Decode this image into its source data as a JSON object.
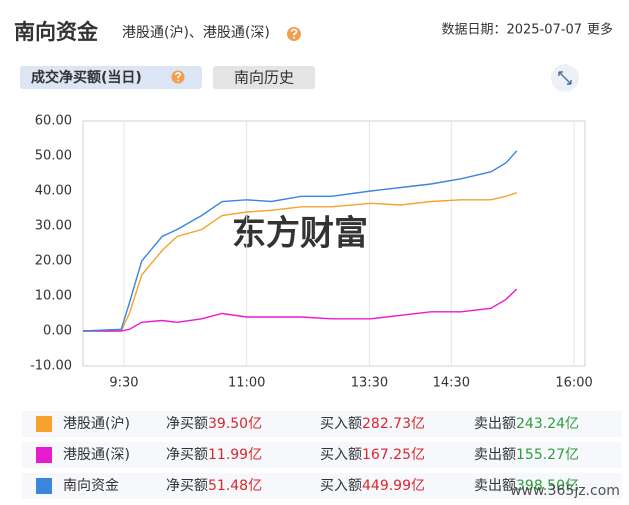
{
  "header": {
    "title": "南向资金",
    "subtitle": "港股通(沪)、港股通(深)",
    "date": "数据日期：2025-07-07",
    "more": "更多"
  },
  "tabs": [
    "成交净买额(当日)",
    "南向历史"
  ],
  "watermark": "东方财富",
  "site_mark": "www.365jz.com",
  "chart_data": {
    "type": "line",
    "x": [
      0,
      28,
      34,
      43,
      58,
      69,
      87,
      102,
      120,
      138,
      160,
      182,
      211,
      233,
      255,
      277,
      299,
      310,
      318
    ],
    "series": [
      {
        "name": "港股通(沪)",
        "color": "#f5a32e",
        "values": [
          0,
          0,
          5,
          16,
          23,
          27,
          29,
          33,
          34,
          34.5,
          35.5,
          35.5,
          36.5,
          36,
          37,
          37.5,
          37.5,
          38.5,
          39.5
        ]
      },
      {
        "name": "港股通(深)",
        "color": "#e81ad0",
        "values": [
          0,
          0,
          0.5,
          2.5,
          3,
          2.5,
          3.5,
          5,
          4,
          4,
          4,
          3.5,
          3.5,
          4.5,
          5.5,
          5.5,
          6.5,
          9,
          11.99
        ]
      },
      {
        "name": "南向资金",
        "color": "#3a86dc",
        "values": [
          0,
          0.5,
          8,
          20,
          27,
          29,
          33,
          37,
          37.5,
          37,
          38.5,
          38.5,
          40,
          41,
          42,
          43.5,
          45.5,
          48,
          51.48
        ]
      }
    ],
    "xlim": [
      0,
      368
    ],
    "xticks": [
      {
        "value": 30,
        "label": "9:30"
      },
      {
        "value": 120,
        "label": "11:00"
      },
      {
        "value": 210,
        "label": "13:30"
      },
      {
        "value": 270,
        "label": "14:30"
      },
      {
        "value": 360,
        "label": "16:00"
      }
    ],
    "ylim": [
      -10,
      60
    ],
    "yticks": [
      {
        "value": -10,
        "label": "-10.00"
      },
      {
        "value": 0,
        "label": "0.00"
      },
      {
        "value": 10,
        "label": "10.00"
      },
      {
        "value": 20,
        "label": "20.00"
      },
      {
        "value": 30,
        "label": "30.00"
      },
      {
        "value": 40,
        "label": "40.00"
      },
      {
        "value": 50,
        "label": "50.00"
      },
      {
        "value": 60,
        "label": "60.00"
      }
    ],
    "grid": "x"
  },
  "summary": {
    "rows": [
      [
        "净买额",
        "39.50亿",
        "买入额",
        "282.73亿",
        "卖出额",
        "243.24亿"
      ],
      [
        "净买额",
        "11.99亿",
        "买入额",
        "167.25亿",
        "卖出额",
        "155.27亿"
      ],
      [
        "净买额",
        "51.48亿",
        "买入额",
        "449.99亿",
        "卖出额",
        "398.50亿"
      ]
    ]
  }
}
